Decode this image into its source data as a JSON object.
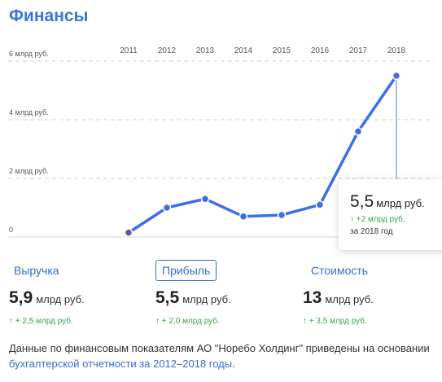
{
  "header": {
    "title": "Финансы"
  },
  "chart_data": {
    "type": "line",
    "categories": [
      "2011",
      "2012",
      "2013",
      "2014",
      "2015",
      "2016",
      "2017",
      "2018"
    ],
    "y_tick_labels": [
      "6 млрд руб.",
      "4 млрд руб.",
      "2 млрд руб.",
      "0"
    ],
    "y_tick_values": [
      6,
      4,
      2,
      0
    ],
    "ylim": [
      0,
      6
    ],
    "series": [
      {
        "values": [
          0.15,
          1.0,
          1.3,
          0.7,
          0.75,
          1.1,
          3.6,
          5.5
        ]
      }
    ],
    "grid": true,
    "colors": {
      "line": "#3b6fe8",
      "first_point": "#6a4fa8",
      "guide": "#4a7fd4"
    }
  },
  "tooltip": {
    "value": "5,5",
    "unit": "млрд руб.",
    "delta": "↑ +2 млрд руб.",
    "period": "за 2018 год"
  },
  "tabs": [
    {
      "label": "Выручка",
      "value": "5,9",
      "unit": "млрд руб.",
      "delta": "↑ + 2,5 млрд руб.",
      "active": false
    },
    {
      "label": "Прибыль",
      "value": "5,5",
      "unit": "млрд руб.",
      "delta": "↑ + 2,0 млрд руб.",
      "active": true
    },
    {
      "label": "Стоимость",
      "value": "13",
      "unit": "млрд руб.",
      "delta": "↑ + 3,5 млрд руб.",
      "active": false
    }
  ],
  "note": {
    "text": "Данные по финансовым показателям АО \"Норебо Холдинг\" приведены на основании ",
    "link": "бухгалтерской отчетности за 2012–2018 годы",
    "end": "."
  },
  "colors": {
    "accent": "#3a76d9",
    "positive": "#3aa54b"
  }
}
